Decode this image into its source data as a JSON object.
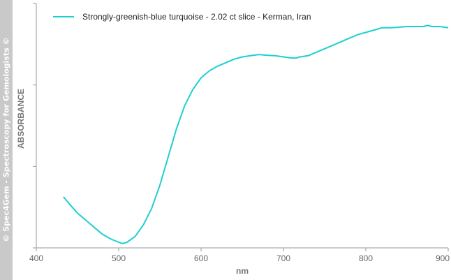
{
  "watermark": "© Spec4Gem - Spectroscopy for Gemologists ©",
  "chart_data": {
    "type": "line",
    "xlabel": "nm",
    "ylabel": "ABSORBANCE",
    "xlim": [
      400,
      900
    ],
    "x_ticks": [
      400,
      500,
      600,
      700,
      800,
      900
    ],
    "y_relative_range": [
      0,
      1
    ],
    "y_ticks_count": 4,
    "grid": false,
    "legend_placement": "top-left",
    "line_color": "#1ecfd0",
    "series": [
      {
        "name": "Strongly-greenish-blue turquoise - 2.02 ct slice - Kerman, Iran",
        "x": [
          433,
          440,
          450,
          460,
          470,
          480,
          490,
          500,
          505,
          510,
          520,
          530,
          540,
          550,
          560,
          570,
          580,
          590,
          600,
          610,
          620,
          630,
          640,
          650,
          660,
          670,
          680,
          690,
          700,
          710,
          715,
          720,
          730,
          740,
          750,
          760,
          770,
          780,
          790,
          800,
          810,
          820,
          830,
          840,
          850,
          860,
          870,
          875,
          880,
          890,
          900
        ],
        "y": [
          0.21,
          0.18,
          0.14,
          0.11,
          0.08,
          0.05,
          0.03,
          0.015,
          0.01,
          0.015,
          0.04,
          0.09,
          0.16,
          0.26,
          0.38,
          0.5,
          0.6,
          0.67,
          0.72,
          0.75,
          0.77,
          0.785,
          0.8,
          0.81,
          0.815,
          0.82,
          0.817,
          0.815,
          0.81,
          0.805,
          0.805,
          0.81,
          0.815,
          0.83,
          0.845,
          0.86,
          0.875,
          0.89,
          0.905,
          0.915,
          0.925,
          0.935,
          0.935,
          0.937,
          0.94,
          0.94,
          0.94,
          0.945,
          0.94,
          0.94,
          0.935
        ]
      }
    ]
  }
}
